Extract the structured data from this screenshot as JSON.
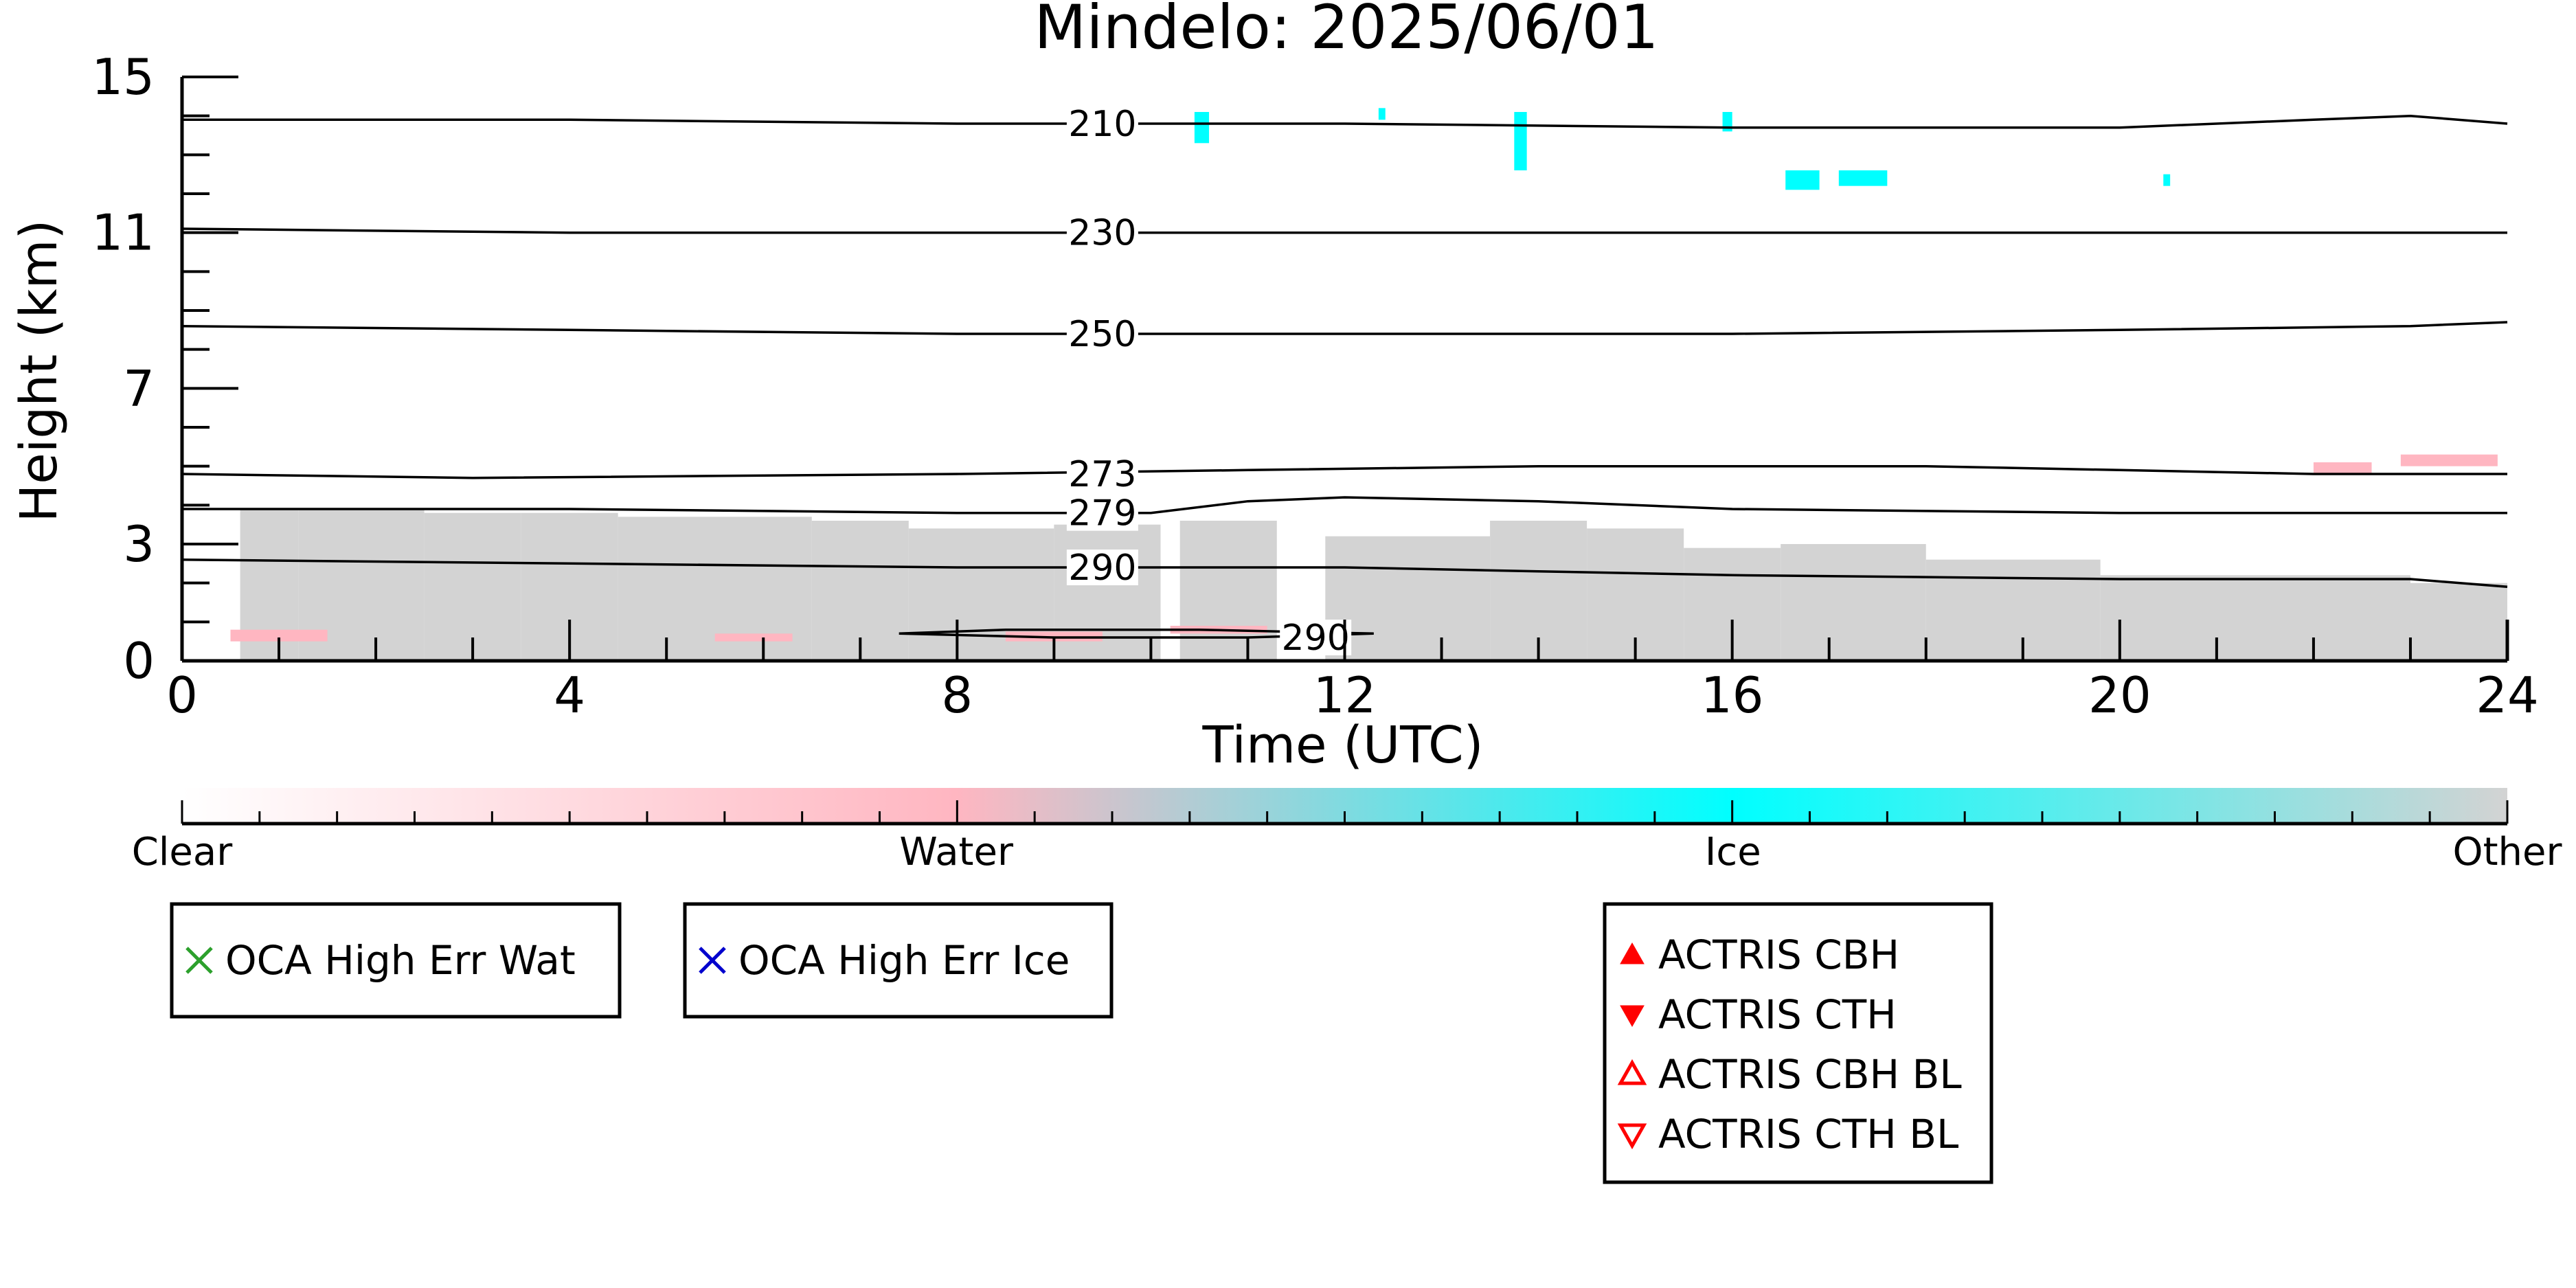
{
  "chart_data": {
    "type": "heatmap",
    "title": "Mindelo: 2025/06/01",
    "xlabel": "Time (UTC)",
    "ylabel": "Height (km)",
    "xlim": [
      0,
      24
    ],
    "ylim": [
      0,
      15
    ],
    "x_ticks": [
      0,
      4,
      8,
      12,
      16,
      20,
      24
    ],
    "x_tick_labels": [
      "0",
      "4",
      "8",
      "12",
      "16",
      "20",
      "24"
    ],
    "y_ticks": [
      0,
      3,
      7,
      11,
      15
    ],
    "y_tick_labels": [
      "0",
      "3",
      "7",
      "11",
      "15"
    ],
    "grid": false,
    "contours": [
      {
        "label": "210",
        "points": [
          [
            0,
            13.9
          ],
          [
            4,
            13.9
          ],
          [
            8,
            13.8
          ],
          [
            12,
            13.8
          ],
          [
            16,
            13.7
          ],
          [
            20,
            13.7
          ],
          [
            22,
            13.9
          ],
          [
            23,
            14.0
          ],
          [
            24,
            13.8
          ]
        ],
        "label_at": [
          9.5,
          13.8
        ]
      },
      {
        "label": "230",
        "points": [
          [
            0,
            11.1
          ],
          [
            4,
            11.0
          ],
          [
            8,
            11.0
          ],
          [
            12,
            11.0
          ],
          [
            16,
            11.0
          ],
          [
            20,
            11.0
          ],
          [
            24,
            11.0
          ]
        ],
        "label_at": [
          9.5,
          11.0
        ]
      },
      {
        "label": "250",
        "points": [
          [
            0,
            8.6
          ],
          [
            4,
            8.5
          ],
          [
            8,
            8.4
          ],
          [
            12,
            8.4
          ],
          [
            16,
            8.4
          ],
          [
            20,
            8.5
          ],
          [
            23,
            8.6
          ],
          [
            24,
            8.7
          ]
        ],
        "label_at": [
          9.5,
          8.4
        ]
      },
      {
        "label": "273",
        "points": [
          [
            0,
            4.8
          ],
          [
            3,
            4.7
          ],
          [
            8,
            4.8
          ],
          [
            11,
            4.9
          ],
          [
            14,
            5.0
          ],
          [
            18,
            5.0
          ],
          [
            20,
            4.9
          ],
          [
            22,
            4.8
          ],
          [
            24,
            4.8
          ]
        ],
        "label_at": [
          9.5,
          4.8
        ]
      },
      {
        "label": "279",
        "points": [
          [
            0,
            3.9
          ],
          [
            4,
            3.9
          ],
          [
            8,
            3.8
          ],
          [
            10,
            3.8
          ],
          [
            11,
            4.1
          ],
          [
            12,
            4.2
          ],
          [
            14,
            4.1
          ],
          [
            16,
            3.9
          ],
          [
            20,
            3.8
          ],
          [
            24,
            3.8
          ]
        ],
        "label_at": [
          9.5,
          3.8
        ]
      },
      {
        "label": "290",
        "points": [
          [
            0,
            2.6
          ],
          [
            4,
            2.5
          ],
          [
            8,
            2.4
          ],
          [
            12,
            2.4
          ],
          [
            14,
            2.3
          ],
          [
            16,
            2.2
          ],
          [
            20,
            2.1
          ],
          [
            23,
            2.1
          ],
          [
            24,
            1.9
          ]
        ],
        "label_at": [
          9.5,
          2.4
        ]
      },
      {
        "label": "290",
        "points": [
          [
            7.4,
            0.7
          ],
          [
            8.5,
            0.8
          ],
          [
            10.5,
            0.8
          ],
          [
            12.3,
            0.7
          ],
          [
            11.0,
            0.6
          ],
          [
            9.0,
            0.6
          ],
          [
            7.4,
            0.7
          ]
        ],
        "label_at": [
          11.7,
          0.6
        ]
      }
    ],
    "classification": [
      {
        "class": "Other",
        "x": [
          0.6,
          1.2
        ],
        "y": [
          0.0,
          3.9
        ]
      },
      {
        "class": "Other",
        "x": [
          1.2,
          2.5
        ],
        "y": [
          0.0,
          3.9
        ]
      },
      {
        "class": "Other",
        "x": [
          2.5,
          3.5
        ],
        "y": [
          0.0,
          3.8
        ]
      },
      {
        "class": "Other",
        "x": [
          3.5,
          4.5
        ],
        "y": [
          0.0,
          3.8
        ]
      },
      {
        "class": "Other",
        "x": [
          4.5,
          6.5
        ],
        "y": [
          0.0,
          3.7
        ]
      },
      {
        "class": "Other",
        "x": [
          6.5,
          7.5
        ],
        "y": [
          0.0,
          3.6
        ]
      },
      {
        "class": "Other",
        "x": [
          7.5,
          9.0
        ],
        "y": [
          0.0,
          3.4
        ]
      },
      {
        "class": "Other",
        "x": [
          9.0,
          10.1
        ],
        "y": [
          0.0,
          3.5
        ]
      },
      {
        "class": "Other",
        "x": [
          10.3,
          11.3
        ],
        "y": [
          0.0,
          3.6
        ]
      },
      {
        "class": "Other",
        "x": [
          11.8,
          13.5
        ],
        "y": [
          0.0,
          3.2
        ]
      },
      {
        "class": "Other",
        "x": [
          13.5,
          14.5
        ],
        "y": [
          0.0,
          3.6
        ]
      },
      {
        "class": "Other",
        "x": [
          14.5,
          15.5
        ],
        "y": [
          0.0,
          3.4
        ]
      },
      {
        "class": "Other",
        "x": [
          15.5,
          16.5
        ],
        "y": [
          0.0,
          2.9
        ]
      },
      {
        "class": "Other",
        "x": [
          16.5,
          18.0
        ],
        "y": [
          0.0,
          3.0
        ]
      },
      {
        "class": "Other",
        "x": [
          18.0,
          19.8
        ],
        "y": [
          0.0,
          2.6
        ]
      },
      {
        "class": "Other",
        "x": [
          19.8,
          23.0
        ],
        "y": [
          0.0,
          2.2
        ]
      },
      {
        "class": "Other",
        "x": [
          23.0,
          24.0
        ],
        "y": [
          0.0,
          2.0
        ]
      },
      {
        "class": "Water",
        "x": [
          0.5,
          1.5
        ],
        "y": [
          0.5,
          0.8
        ]
      },
      {
        "class": "Water",
        "x": [
          5.5,
          6.3
        ],
        "y": [
          0.5,
          0.7
        ]
      },
      {
        "class": "Water",
        "x": [
          8.5,
          9.5
        ],
        "y": [
          0.5,
          0.75
        ]
      },
      {
        "class": "Water",
        "x": [
          10.2,
          11.2
        ],
        "y": [
          0.7,
          0.9
        ]
      },
      {
        "class": "Water",
        "x": [
          22.0,
          22.6
        ],
        "y": [
          4.8,
          5.1
        ]
      },
      {
        "class": "Water",
        "x": [
          22.9,
          23.9
        ],
        "y": [
          5.0,
          5.3
        ]
      },
      {
        "class": "Ice",
        "x": [
          10.45,
          10.6
        ],
        "y": [
          13.3,
          14.1
        ]
      },
      {
        "class": "Ice",
        "x": [
          12.35,
          12.42
        ],
        "y": [
          13.9,
          14.2
        ]
      },
      {
        "class": "Ice",
        "x": [
          13.75,
          13.88
        ],
        "y": [
          12.6,
          14.1
        ]
      },
      {
        "class": "Ice",
        "x": [
          15.9,
          16.0
        ],
        "y": [
          13.6,
          14.1
        ]
      },
      {
        "class": "Ice",
        "x": [
          16.55,
          16.9
        ],
        "y": [
          12.1,
          12.6
        ]
      },
      {
        "class": "Ice",
        "x": [
          17.1,
          17.6
        ],
        "y": [
          12.2,
          12.6
        ]
      },
      {
        "class": "Ice",
        "x": [
          20.45,
          20.52
        ],
        "y": [
          12.2,
          12.5
        ]
      }
    ],
    "colorbar": {
      "labels": [
        "Clear",
        "Water",
        "Ice",
        "Other"
      ],
      "positions": [
        0,
        0.333,
        0.667,
        1.0
      ],
      "colors": [
        "#ffffff",
        "#ffb6c1",
        "#00ffff",
        "#d3d3d3"
      ]
    },
    "legends": [
      {
        "entries": [
          {
            "label": "OCA High Err Wat",
            "marker": "x",
            "color": "#2ca02c"
          }
        ]
      },
      {
        "entries": [
          {
            "label": "OCA High Err Ice",
            "marker": "x",
            "color": "#0000cd"
          }
        ]
      },
      {
        "entries": [
          {
            "label": "ACTRIS CBH",
            "marker": "triangle-up-filled",
            "color": "#ff0000"
          },
          {
            "label": "ACTRIS CTH",
            "marker": "triangle-down-filled",
            "color": "#ff0000"
          },
          {
            "label": "ACTRIS CBH BL",
            "marker": "triangle-up-open",
            "color": "#ff0000"
          },
          {
            "label": "ACTRIS CTH BL",
            "marker": "triangle-down-open",
            "color": "#ff0000"
          }
        ]
      }
    ]
  }
}
